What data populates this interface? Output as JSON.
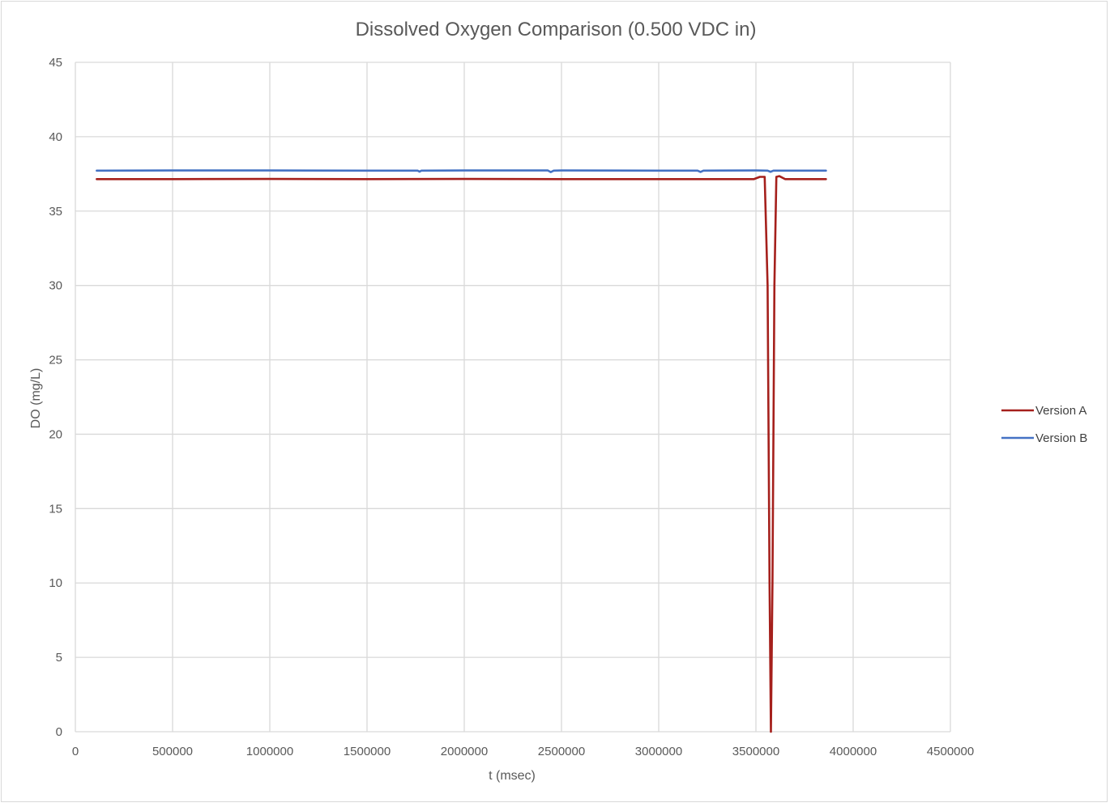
{
  "chart_data": {
    "type": "line",
    "title": "Dissolved Oxygen Comparison (0.500 VDC in)",
    "xlabel": "t (msec)",
    "ylabel": "DO (mg/L)",
    "xlim": [
      0,
      4500000
    ],
    "ylim": [
      0,
      45
    ],
    "x_ticks": [
      "0",
      "500000",
      "1000000",
      "1500000",
      "2000000",
      "2500000",
      "3000000",
      "3500000",
      "4000000",
      "4500000"
    ],
    "y_ticks": [
      "0",
      "5",
      "10",
      "15",
      "20",
      "25",
      "30",
      "35",
      "40",
      "45"
    ],
    "grid": true,
    "legend_position": "right",
    "series": [
      {
        "name": "Version A",
        "color": "#a5201c",
        "points": [
          [
            110000,
            37.15
          ],
          [
            500000,
            37.15
          ],
          [
            1000000,
            37.16
          ],
          [
            1500000,
            37.15
          ],
          [
            2000000,
            37.16
          ],
          [
            2500000,
            37.15
          ],
          [
            3000000,
            37.15
          ],
          [
            3490000,
            37.15
          ],
          [
            3520000,
            37.3
          ],
          [
            3545000,
            37.3
          ],
          [
            3560000,
            30.0
          ],
          [
            3570000,
            10.0
          ],
          [
            3577000,
            0.0
          ],
          [
            3585000,
            10.0
          ],
          [
            3595000,
            30.0
          ],
          [
            3605000,
            37.3
          ],
          [
            3620000,
            37.35
          ],
          [
            3650000,
            37.15
          ],
          [
            3860000,
            37.15
          ]
        ]
      },
      {
        "name": "Version B",
        "color": "#4472c4",
        "points": [
          [
            110000,
            37.72
          ],
          [
            500000,
            37.73
          ],
          [
            1000000,
            37.73
          ],
          [
            1500000,
            37.72
          ],
          [
            1760000,
            37.72
          ],
          [
            1770000,
            37.65
          ],
          [
            1780000,
            37.72
          ],
          [
            2000000,
            37.73
          ],
          [
            2430000,
            37.73
          ],
          [
            2445000,
            37.62
          ],
          [
            2460000,
            37.72
          ],
          [
            2500000,
            37.73
          ],
          [
            3000000,
            37.72
          ],
          [
            3200000,
            37.72
          ],
          [
            3215000,
            37.63
          ],
          [
            3230000,
            37.72
          ],
          [
            3500000,
            37.73
          ],
          [
            3560000,
            37.72
          ],
          [
            3575000,
            37.64
          ],
          [
            3590000,
            37.72
          ],
          [
            3860000,
            37.72
          ]
        ]
      }
    ]
  }
}
